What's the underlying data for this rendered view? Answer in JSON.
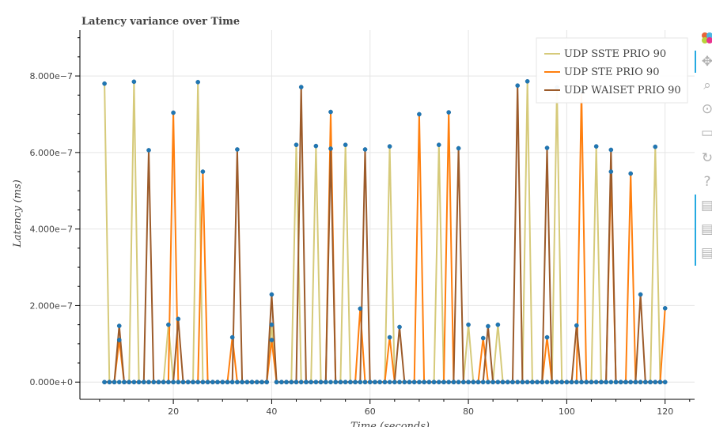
{
  "chart_data": {
    "type": "line",
    "title": "Latency variance over Time",
    "xlabel": "Time (seconds)",
    "ylabel": "Latency (ms)",
    "xlim": [
      1,
      126
    ],
    "ylim": [
      -4.5e-08,
      9.2e-07
    ],
    "x_ticks": [
      20,
      40,
      60,
      80,
      100,
      120
    ],
    "x_tick_labels": [
      "20",
      "40",
      "60",
      "80",
      "100",
      "120"
    ],
    "y_ticks": [
      0,
      2e-07,
      4e-07,
      6e-07,
      8e-07
    ],
    "y_tick_labels": [
      "0.000e+0",
      "2.000e−7",
      "4.000e−7",
      "6.000e−7",
      "8.000e−7"
    ],
    "grid": true,
    "legend_position": "top-right",
    "marker_color": "#1f77b4",
    "series": [
      {
        "name": "UDP SSTE PRIO 90",
        "color": "#d6ca7a",
        "spikes": [
          [
            6,
            7.8e-07
          ],
          [
            12,
            7.85e-07
          ],
          [
            19,
            1.5e-07
          ],
          [
            25,
            7.84e-07
          ],
          [
            40,
            1.5e-07
          ],
          [
            45,
            6.2e-07
          ],
          [
            49,
            6.17e-07
          ],
          [
            55,
            6.2e-07
          ],
          [
            64,
            6.16e-07
          ],
          [
            74,
            6.2e-07
          ],
          [
            80,
            1.5e-07
          ],
          [
            86,
            1.5e-07
          ],
          [
            92,
            7.86e-07
          ],
          [
            98,
            7.7e-07
          ],
          [
            106,
            6.16e-07
          ],
          [
            118,
            6.15e-07
          ]
        ]
      },
      {
        "name": "UDP STE PRIO 90",
        "color": "#ff7f0e",
        "spikes": [
          [
            9,
            1.1e-07
          ],
          [
            20,
            7.04e-07
          ],
          [
            26,
            5.5e-07
          ],
          [
            32,
            1.17e-07
          ],
          [
            40,
            1.1e-07
          ],
          [
            52,
            7.06e-07
          ],
          [
            58,
            1.92e-07
          ],
          [
            64,
            1.17e-07
          ],
          [
            70,
            7e-07
          ],
          [
            76,
            7.05e-07
          ],
          [
            83,
            1.15e-07
          ],
          [
            96,
            1.17e-07
          ],
          [
            103,
            7.6e-07
          ],
          [
            109,
            5.5e-07
          ],
          [
            113,
            5.45e-07
          ],
          [
            120,
            1.93e-07
          ]
        ]
      },
      {
        "name": "UDP WAISET PRIO 90",
        "color": "#9c5b2a",
        "spikes": [
          [
            9,
            1.47e-07
          ],
          [
            15,
            6.06e-07
          ],
          [
            21,
            1.65e-07
          ],
          [
            33,
            6.08e-07
          ],
          [
            40,
            2.29e-07
          ],
          [
            46,
            7.71e-07
          ],
          [
            52,
            6.1e-07
          ],
          [
            59,
            6.08e-07
          ],
          [
            66,
            1.44e-07
          ],
          [
            78,
            6.11e-07
          ],
          [
            84,
            1.46e-07
          ],
          [
            90,
            7.75e-07
          ],
          [
            96,
            6.12e-07
          ],
          [
            102,
            1.48e-07
          ],
          [
            109,
            6.07e-07
          ],
          [
            115,
            2.29e-07
          ]
        ]
      }
    ]
  },
  "toolbar": {
    "icons": [
      "bokeh-logo-icon",
      "pan-icon",
      "box-zoom-icon",
      "wheel-zoom-icon",
      "save-icon",
      "reset-icon",
      "help-icon",
      "hover-icon",
      "hover-icon",
      "hover-icon"
    ]
  }
}
